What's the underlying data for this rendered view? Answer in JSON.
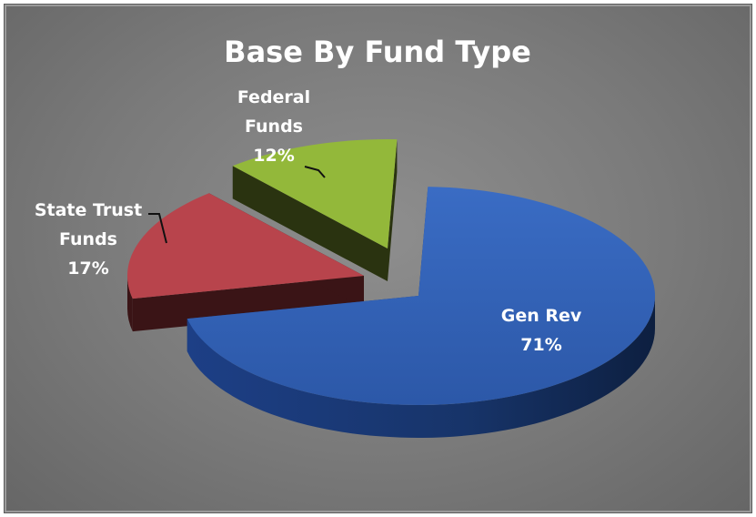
{
  "chart_data": {
    "type": "pie",
    "style": "3d-exploded",
    "title": "Base By Fund Type",
    "slices": [
      {
        "name": "Gen Rev",
        "value": 71,
        "label_lines": [
          "Gen Rev",
          "71%"
        ],
        "color": "#2f5fb3",
        "side_color": "#163a7a"
      },
      {
        "name": "State Trust Funds",
        "value": 17,
        "label_lines": [
          "State Trust",
          "Funds",
          "17%"
        ],
        "color": "#b8444c",
        "side_color": "#3a1416"
      },
      {
        "name": "Federal Funds",
        "value": 12,
        "label_lines": [
          "Federal",
          "Funds",
          "12%"
        ],
        "color": "#93b83a",
        "side_color": "#2a3310"
      }
    ],
    "legend": "none"
  }
}
